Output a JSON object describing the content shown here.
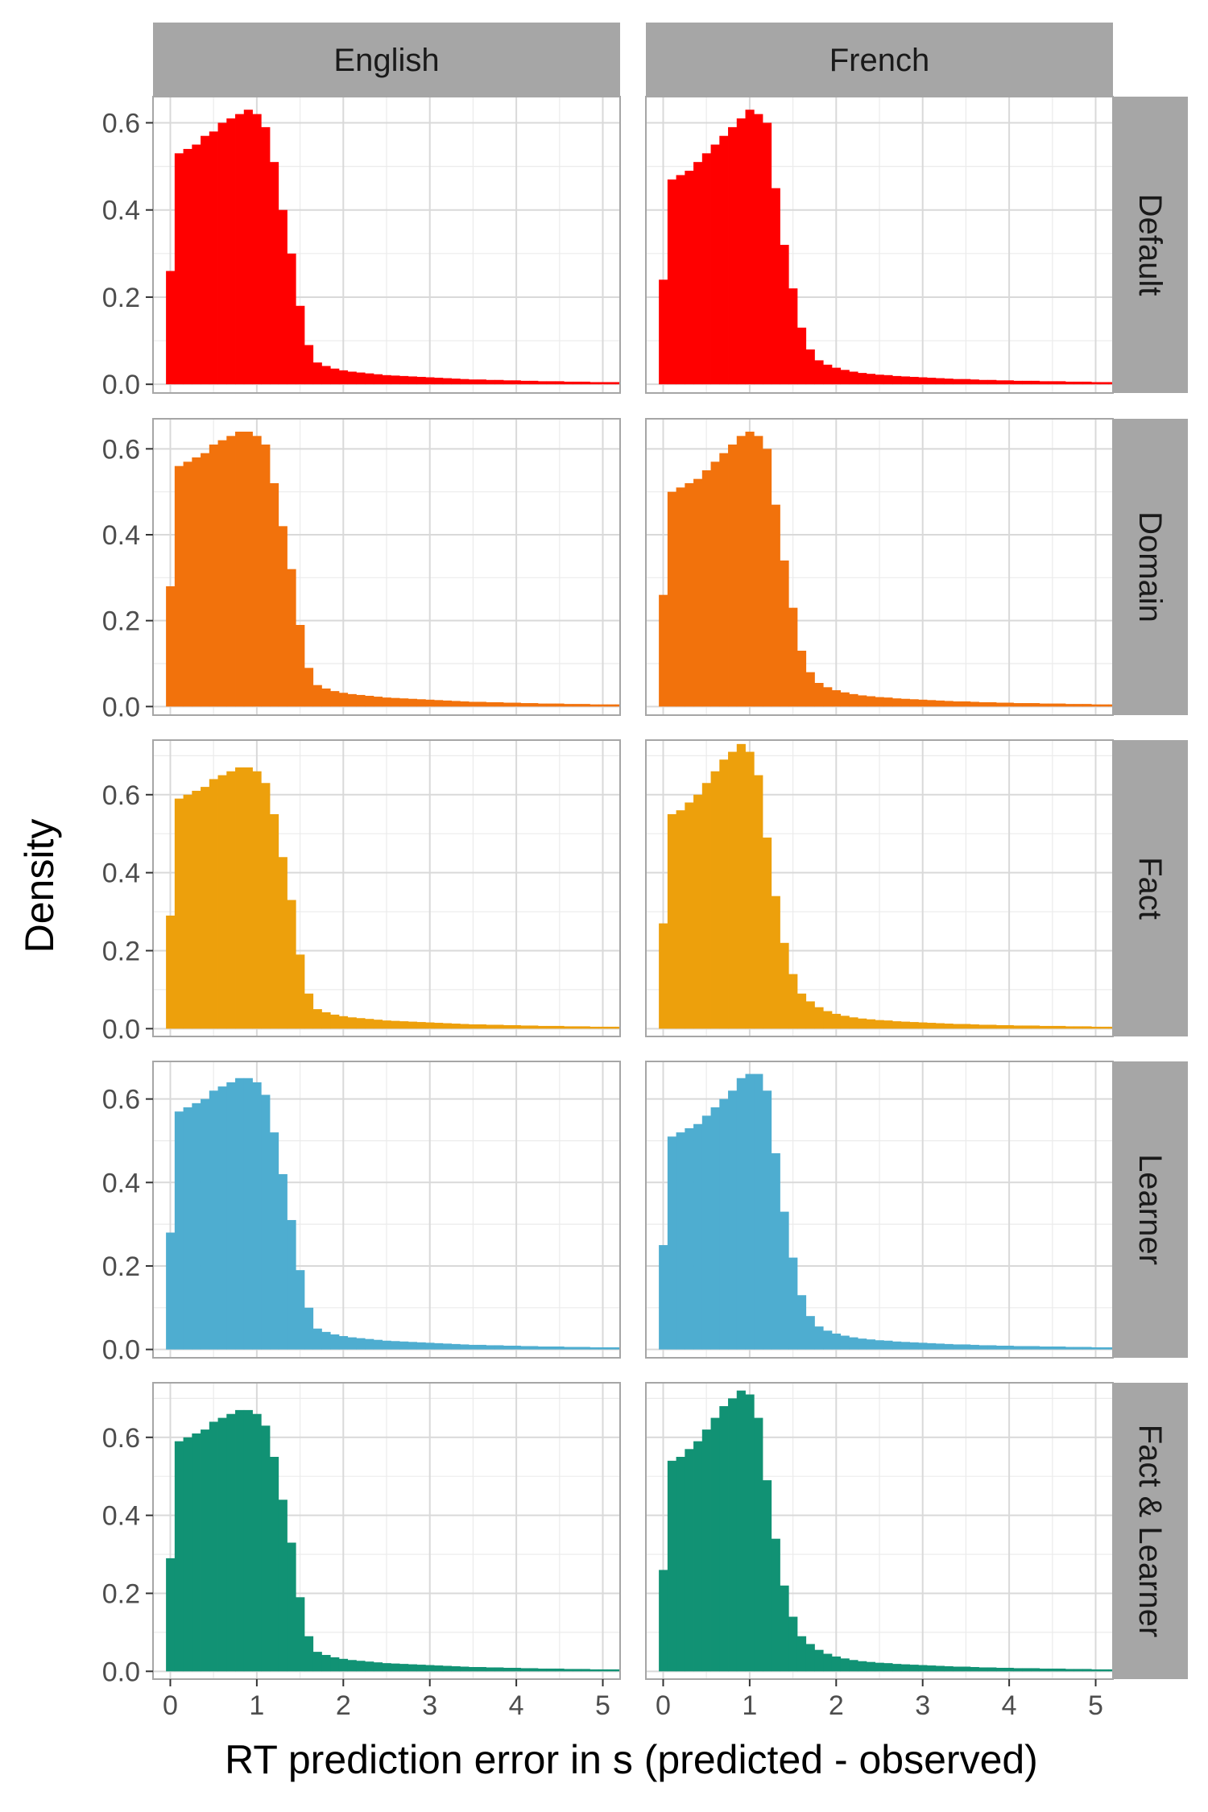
{
  "chart_data": {
    "type": "histogram-facet-grid",
    "xlabel": "RT prediction error in s (predicted - observed)",
    "ylabel": "Density",
    "columns": [
      "English",
      "French"
    ],
    "rows": [
      "Default",
      "Domain",
      "Fact",
      "Learner",
      "Fact & Learner"
    ],
    "row_colors": [
      "#FF0000",
      "#F2720C",
      "#EDA00C",
      "#4EADD0",
      "#119274"
    ],
    "xlim": [
      -0.2,
      5.2
    ],
    "x_ticks": [
      0,
      1,
      2,
      3,
      4,
      5
    ],
    "grid": true,
    "bin_start": -0.05,
    "bin_width": 0.1,
    "panels": [
      {
        "row": "Default",
        "column": "English",
        "ylim": [
          -0.02,
          0.66
        ],
        "y_ticks": [
          0.0,
          0.2,
          0.4,
          0.6
        ],
        "density": [
          0.26,
          0.53,
          0.54,
          0.55,
          0.57,
          0.58,
          0.6,
          0.61,
          0.62,
          0.63,
          0.62,
          0.59,
          0.51,
          0.4,
          0.3,
          0.18,
          0.09,
          0.05,
          0.042,
          0.036,
          0.032,
          0.029,
          0.027,
          0.025,
          0.023,
          0.021,
          0.02,
          0.019,
          0.018,
          0.017,
          0.016,
          0.015,
          0.014,
          0.013,
          0.012,
          0.011,
          0.011,
          0.01,
          0.01,
          0.009,
          0.009,
          0.008,
          0.008,
          0.007,
          0.007,
          0.007,
          0.006,
          0.006,
          0.006,
          0.005,
          0.005,
          0.005,
          0.005
        ]
      },
      {
        "row": "Default",
        "column": "French",
        "ylim": [
          -0.02,
          0.66
        ],
        "y_ticks": [
          0.0,
          0.2,
          0.4,
          0.6
        ],
        "density": [
          0.24,
          0.47,
          0.48,
          0.49,
          0.51,
          0.53,
          0.55,
          0.57,
          0.59,
          0.61,
          0.63,
          0.62,
          0.6,
          0.45,
          0.32,
          0.22,
          0.13,
          0.08,
          0.055,
          0.045,
          0.038,
          0.033,
          0.029,
          0.026,
          0.024,
          0.022,
          0.021,
          0.019,
          0.018,
          0.017,
          0.016,
          0.015,
          0.014,
          0.013,
          0.012,
          0.012,
          0.011,
          0.01,
          0.01,
          0.009,
          0.009,
          0.008,
          0.008,
          0.008,
          0.007,
          0.007,
          0.007,
          0.006,
          0.006,
          0.006,
          0.005,
          0.005,
          0.005
        ]
      },
      {
        "row": "Domain",
        "column": "English",
        "ylim": [
          -0.02,
          0.67
        ],
        "y_ticks": [
          0.0,
          0.2,
          0.4,
          0.6
        ],
        "density": [
          0.28,
          0.56,
          0.57,
          0.58,
          0.59,
          0.61,
          0.62,
          0.63,
          0.64,
          0.64,
          0.63,
          0.61,
          0.52,
          0.42,
          0.32,
          0.19,
          0.09,
          0.05,
          0.042,
          0.036,
          0.032,
          0.029,
          0.027,
          0.025,
          0.023,
          0.021,
          0.02,
          0.019,
          0.018,
          0.017,
          0.016,
          0.015,
          0.014,
          0.013,
          0.012,
          0.011,
          0.011,
          0.01,
          0.01,
          0.009,
          0.009,
          0.008,
          0.008,
          0.007,
          0.007,
          0.007,
          0.006,
          0.006,
          0.006,
          0.005,
          0.005,
          0.005,
          0.005
        ]
      },
      {
        "row": "Domain",
        "column": "French",
        "ylim": [
          -0.02,
          0.67
        ],
        "y_ticks": [
          0.0,
          0.2,
          0.4,
          0.6
        ],
        "density": [
          0.26,
          0.5,
          0.51,
          0.52,
          0.53,
          0.55,
          0.57,
          0.59,
          0.61,
          0.63,
          0.64,
          0.63,
          0.6,
          0.47,
          0.34,
          0.23,
          0.13,
          0.08,
          0.055,
          0.045,
          0.038,
          0.033,
          0.029,
          0.026,
          0.024,
          0.022,
          0.021,
          0.019,
          0.018,
          0.017,
          0.016,
          0.015,
          0.014,
          0.013,
          0.012,
          0.012,
          0.011,
          0.01,
          0.01,
          0.009,
          0.009,
          0.008,
          0.008,
          0.008,
          0.007,
          0.007,
          0.007,
          0.006,
          0.006,
          0.006,
          0.005,
          0.005,
          0.005
        ]
      },
      {
        "row": "Fact",
        "column": "English",
        "ylim": [
          -0.02,
          0.74
        ],
        "y_ticks": [
          0.0,
          0.2,
          0.4,
          0.6
        ],
        "density": [
          0.29,
          0.59,
          0.6,
          0.61,
          0.62,
          0.64,
          0.65,
          0.66,
          0.67,
          0.67,
          0.66,
          0.63,
          0.55,
          0.44,
          0.33,
          0.19,
          0.09,
          0.05,
          0.042,
          0.036,
          0.032,
          0.029,
          0.027,
          0.025,
          0.023,
          0.021,
          0.02,
          0.019,
          0.018,
          0.017,
          0.016,
          0.015,
          0.014,
          0.013,
          0.012,
          0.011,
          0.011,
          0.01,
          0.01,
          0.009,
          0.009,
          0.008,
          0.008,
          0.007,
          0.007,
          0.007,
          0.006,
          0.006,
          0.006,
          0.005,
          0.005,
          0.005,
          0.005
        ]
      },
      {
        "row": "Fact",
        "column": "French",
        "ylim": [
          -0.02,
          0.74
        ],
        "y_ticks": [
          0.0,
          0.2,
          0.4,
          0.6
        ],
        "density": [
          0.27,
          0.55,
          0.56,
          0.58,
          0.6,
          0.63,
          0.66,
          0.69,
          0.71,
          0.73,
          0.71,
          0.65,
          0.49,
          0.34,
          0.22,
          0.14,
          0.09,
          0.07,
          0.055,
          0.045,
          0.038,
          0.033,
          0.029,
          0.026,
          0.024,
          0.022,
          0.021,
          0.019,
          0.018,
          0.017,
          0.016,
          0.015,
          0.014,
          0.013,
          0.012,
          0.012,
          0.011,
          0.01,
          0.01,
          0.009,
          0.009,
          0.008,
          0.008,
          0.008,
          0.007,
          0.007,
          0.007,
          0.006,
          0.006,
          0.006,
          0.005,
          0.005,
          0.005
        ]
      },
      {
        "row": "Learner",
        "column": "English",
        "ylim": [
          -0.02,
          0.69
        ],
        "y_ticks": [
          0.0,
          0.2,
          0.4,
          0.6
        ],
        "density": [
          0.28,
          0.57,
          0.58,
          0.59,
          0.6,
          0.62,
          0.63,
          0.64,
          0.65,
          0.65,
          0.64,
          0.61,
          0.52,
          0.42,
          0.31,
          0.19,
          0.1,
          0.05,
          0.042,
          0.036,
          0.032,
          0.029,
          0.027,
          0.025,
          0.023,
          0.021,
          0.02,
          0.019,
          0.018,
          0.017,
          0.016,
          0.015,
          0.014,
          0.013,
          0.012,
          0.011,
          0.011,
          0.01,
          0.01,
          0.009,
          0.009,
          0.008,
          0.008,
          0.007,
          0.007,
          0.007,
          0.006,
          0.006,
          0.006,
          0.005,
          0.005,
          0.005,
          0.005
        ]
      },
      {
        "row": "Learner",
        "column": "French",
        "ylim": [
          -0.02,
          0.69
        ],
        "y_ticks": [
          0.0,
          0.2,
          0.4,
          0.6
        ],
        "density": [
          0.25,
          0.51,
          0.52,
          0.53,
          0.54,
          0.56,
          0.58,
          0.6,
          0.62,
          0.65,
          0.66,
          0.66,
          0.62,
          0.47,
          0.33,
          0.22,
          0.13,
          0.08,
          0.055,
          0.045,
          0.038,
          0.033,
          0.029,
          0.026,
          0.024,
          0.022,
          0.021,
          0.019,
          0.018,
          0.017,
          0.016,
          0.015,
          0.014,
          0.013,
          0.012,
          0.012,
          0.011,
          0.01,
          0.01,
          0.009,
          0.009,
          0.008,
          0.008,
          0.008,
          0.007,
          0.007,
          0.007,
          0.006,
          0.006,
          0.006,
          0.005,
          0.005,
          0.005
        ]
      },
      {
        "row": "Fact & Learner",
        "column": "English",
        "ylim": [
          -0.02,
          0.74
        ],
        "y_ticks": [
          0.0,
          0.2,
          0.4,
          0.6
        ],
        "density": [
          0.29,
          0.59,
          0.6,
          0.61,
          0.62,
          0.64,
          0.65,
          0.66,
          0.67,
          0.67,
          0.66,
          0.63,
          0.55,
          0.44,
          0.33,
          0.19,
          0.09,
          0.05,
          0.042,
          0.036,
          0.032,
          0.029,
          0.027,
          0.025,
          0.023,
          0.021,
          0.02,
          0.019,
          0.018,
          0.017,
          0.016,
          0.015,
          0.014,
          0.013,
          0.012,
          0.011,
          0.011,
          0.01,
          0.01,
          0.009,
          0.009,
          0.008,
          0.008,
          0.007,
          0.007,
          0.007,
          0.006,
          0.006,
          0.006,
          0.005,
          0.005,
          0.005,
          0.005
        ]
      },
      {
        "row": "Fact & Learner",
        "column": "French",
        "ylim": [
          -0.02,
          0.74
        ],
        "y_ticks": [
          0.0,
          0.2,
          0.4,
          0.6
        ],
        "density": [
          0.26,
          0.54,
          0.55,
          0.57,
          0.59,
          0.62,
          0.65,
          0.68,
          0.7,
          0.72,
          0.71,
          0.65,
          0.49,
          0.34,
          0.22,
          0.14,
          0.09,
          0.07,
          0.055,
          0.045,
          0.038,
          0.033,
          0.029,
          0.026,
          0.024,
          0.022,
          0.021,
          0.019,
          0.018,
          0.017,
          0.016,
          0.015,
          0.014,
          0.013,
          0.012,
          0.012,
          0.011,
          0.01,
          0.01,
          0.009,
          0.009,
          0.008,
          0.008,
          0.008,
          0.007,
          0.007,
          0.007,
          0.006,
          0.006,
          0.006,
          0.005,
          0.005,
          0.005
        ]
      }
    ]
  }
}
